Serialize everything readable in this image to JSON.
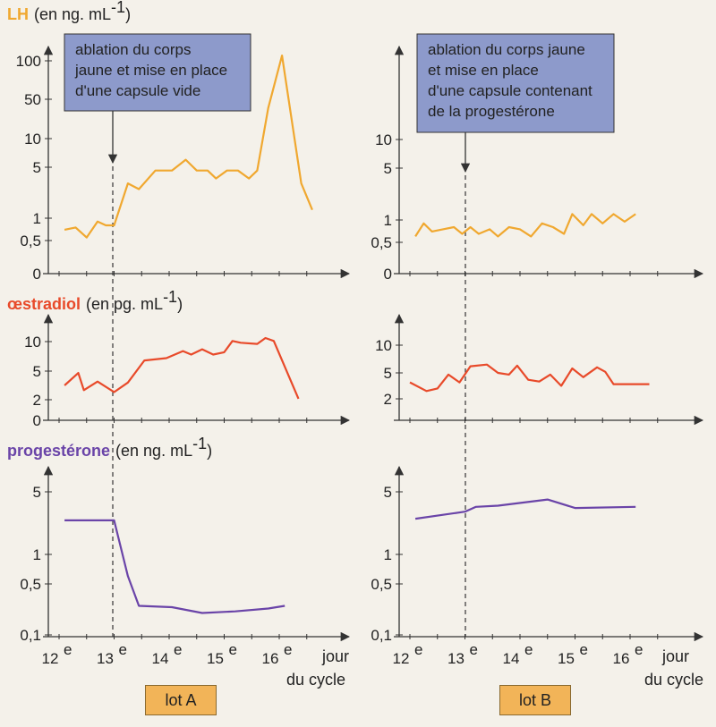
{
  "titles": {
    "lh": "LH",
    "lh_unit": "(en ng. mL",
    "oe": "œstradiol",
    "oe_unit": "(en pg. mL",
    "pg": "progestérone",
    "pg_unit": "(en ng. mL",
    "exp": "-1",
    "close": ")"
  },
  "annotations": {
    "A": [
      "ablation du corps",
      "jaune et mise en place",
      "d'une capsule vide"
    ],
    "B": [
      "ablation du corps jaune",
      "et mise en place",
      "d'une capsule contenant",
      "de la progestérone"
    ]
  },
  "xaxis": {
    "ticks": [
      "12",
      "13",
      "14",
      "15",
      "16"
    ],
    "suffix": "e",
    "label1": "jour",
    "label2": "du cycle"
  },
  "lots": [
    "lot A",
    "lot B"
  ],
  "colors": {
    "lh": "#f0a830",
    "oe": "#e84a2a",
    "pg": "#6a44a8",
    "box": "#8d9acb"
  },
  "chart_data": [
    {
      "type": "line",
      "panel": "LH - lot A",
      "scale": "log",
      "yticks": [
        "0",
        "0,5",
        "1",
        "5",
        "10",
        "50",
        "100"
      ],
      "x": [
        12.1,
        12.3,
        12.5,
        12.7,
        12.85,
        13.0,
        13.25,
        13.45,
        13.75,
        14.05,
        14.3,
        14.5,
        14.7,
        14.85,
        15.05,
        15.25,
        15.45,
        15.6,
        15.8,
        16.05,
        16.4,
        16.6
      ],
      "y": [
        0.7,
        0.75,
        0.55,
        0.9,
        0.8,
        0.8,
        3.0,
        2.5,
        4.5,
        4.5,
        6.0,
        4.5,
        4.5,
        3.5,
        4.5,
        4.5,
        3.5,
        4.5,
        35,
        110,
        3,
        1.3
      ]
    },
    {
      "type": "line",
      "panel": "LH - lot B",
      "scale": "log",
      "yticks": [
        "0",
        "0,5",
        "1",
        "5",
        "10"
      ],
      "x": [
        12.1,
        12.25,
        12.4,
        12.6,
        12.8,
        12.95,
        13.1,
        13.25,
        13.45,
        13.6,
        13.8,
        14.0,
        14.2,
        14.4,
        14.6,
        14.8,
        14.95,
        15.15,
        15.3,
        15.5,
        15.7,
        15.9,
        16.1
      ],
      "y": [
        0.6,
        0.9,
        0.7,
        0.75,
        0.8,
        0.65,
        0.8,
        0.65,
        0.75,
        0.6,
        0.8,
        0.75,
        0.6,
        0.9,
        0.8,
        0.65,
        1.2,
        0.85,
        1.2,
        0.9,
        1.2,
        0.95,
        1.2
      ]
    },
    {
      "type": "line",
      "panel": "œstradiol - lot A",
      "yticks": [
        "0",
        "2",
        "5",
        "10"
      ],
      "x": [
        12.1,
        12.35,
        12.45,
        12.7,
        13.0,
        13.25,
        13.55,
        13.95,
        14.25,
        14.4,
        14.6,
        14.8,
        15.0,
        15.15,
        15.3,
        15.6,
        15.75,
        15.9,
        16.35
      ],
      "y": [
        3.5,
        4.8,
        3.0,
        3.9,
        2.8,
        3.8,
        6.8,
        7.2,
        8.4,
        7.8,
        8.7,
        7.8,
        8.2,
        10.1,
        9.8,
        9.6,
        10.6,
        10.1,
        2.1
      ]
    },
    {
      "type": "line",
      "panel": "œstradiol - lot B",
      "yticks": [
        "2",
        "5",
        "10"
      ],
      "x": [
        12.0,
        12.3,
        12.5,
        12.7,
        12.9,
        13.1,
        13.4,
        13.6,
        13.8,
        13.95,
        14.15,
        14.35,
        14.55,
        14.75,
        14.95,
        15.15,
        15.4,
        15.55,
        15.7,
        15.9,
        16.35
      ],
      "y": [
        3.9,
        2.9,
        3.2,
        4.8,
        3.9,
        6.2,
        6.5,
        5.0,
        4.8,
        6.3,
        4.2,
        4.0,
        4.8,
        3.5,
        5.8,
        4.5,
        6.0,
        5.2,
        3.7,
        3.7,
        3.7
      ]
    },
    {
      "type": "line",
      "panel": "progestérone - lot A",
      "scale": "log",
      "yticks": [
        "0,1",
        "0,5",
        "1",
        "5"
      ],
      "x": [
        12.1,
        13.0,
        13.25,
        13.45,
        14.05,
        14.6,
        15.2,
        15.8,
        16.1
      ],
      "y": [
        2.4,
        2.4,
        0.6,
        0.25,
        0.24,
        0.2,
        0.21,
        0.23,
        0.25
      ]
    },
    {
      "type": "line",
      "panel": "progestérone - lot B",
      "scale": "log",
      "yticks": [
        "0,1",
        "0,5",
        "1",
        "5"
      ],
      "x": [
        12.1,
        13.0,
        13.2,
        13.6,
        14.5,
        15.0,
        16.1
      ],
      "y": [
        2.5,
        3.0,
        3.4,
        3.5,
        4.1,
        3.3,
        3.4
      ]
    }
  ]
}
